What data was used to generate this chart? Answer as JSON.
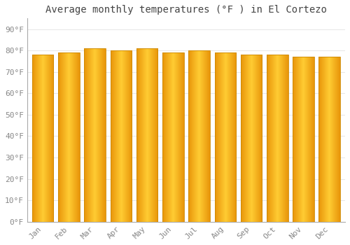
{
  "title": "Average monthly temperatures (°F ) in El Cortezo",
  "months": [
    "Jan",
    "Feb",
    "Mar",
    "Apr",
    "May",
    "Jun",
    "Jul",
    "Aug",
    "Sep",
    "Oct",
    "Nov",
    "Dec"
  ],
  "values": [
    78,
    79,
    81,
    80,
    81,
    79,
    80,
    79,
    78,
    78,
    77,
    77
  ],
  "bar_color_left": "#E8950A",
  "bar_color_center": "#FFCC33",
  "bar_color_right": "#E8950A",
  "bar_edge_color": "#CC8800",
  "background_color": "#FFFFFF",
  "plot_bg_color": "#FFFFFF",
  "grid_color": "#DDDDDD",
  "tick_color": "#888888",
  "title_color": "#444444",
  "ytick_labels": [
    "0°F",
    "10°F",
    "20°F",
    "30°F",
    "40°F",
    "50°F",
    "60°F",
    "70°F",
    "80°F",
    "90°F"
  ],
  "ytick_values": [
    0,
    10,
    20,
    30,
    40,
    50,
    60,
    70,
    80,
    90
  ],
  "ylim": [
    0,
    95
  ],
  "font_family": "monospace",
  "title_fontsize": 10,
  "tick_fontsize": 8,
  "bar_width": 0.82,
  "n_gradient_steps": 100
}
